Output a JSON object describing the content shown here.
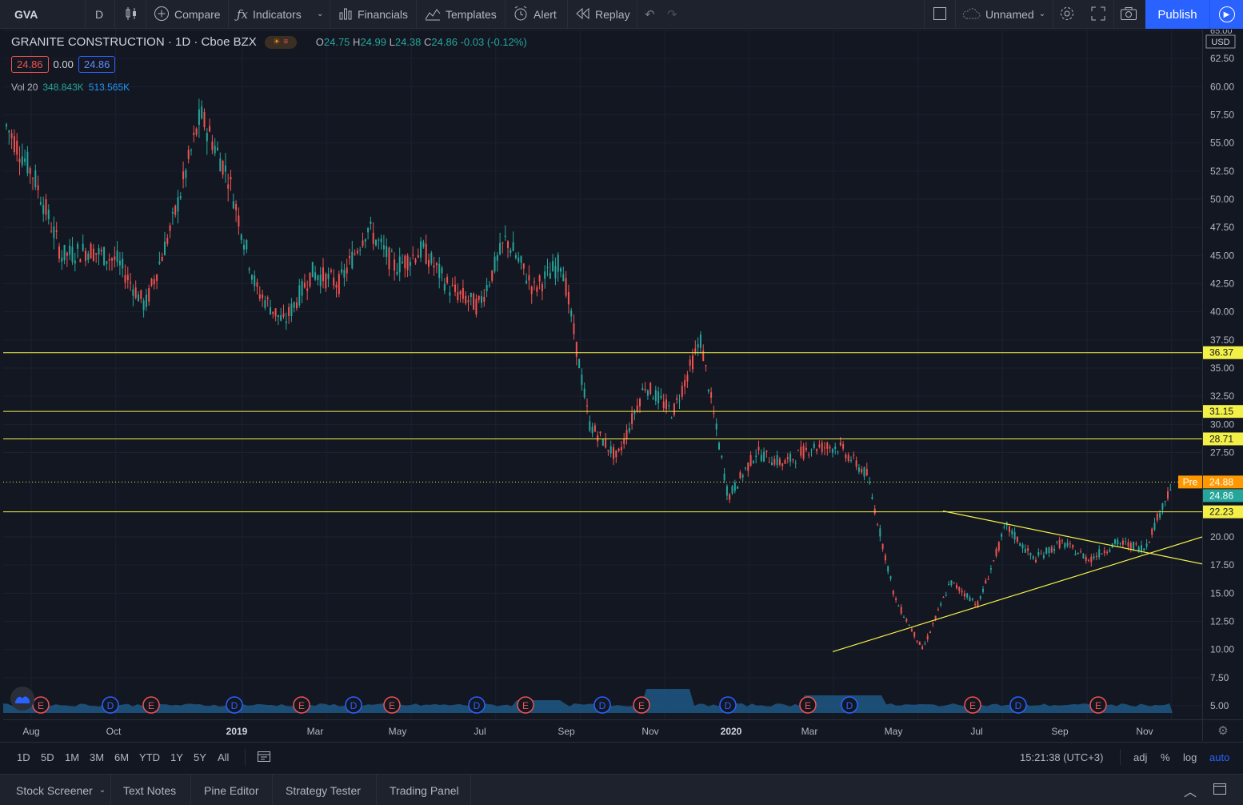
{
  "toolbar": {
    "symbol": "GVA",
    "interval": "D",
    "compare": "Compare",
    "indicators": "Indicators",
    "financials": "Financials",
    "templates": "Templates",
    "alert": "Alert",
    "replay": "Replay",
    "layout_name": "Unnamed",
    "publish": "Publish"
  },
  "legend": {
    "title": "GRANITE CONSTRUCTION",
    "interval": "1D",
    "exchange": "Cboe BZX",
    "open_label": "O",
    "open": "24.75",
    "high_label": "H",
    "high": "24.99",
    "low_label": "L",
    "low": "24.38",
    "close_label": "C",
    "close": "24.86",
    "change": "-0.03 (-0.12%)",
    "bid": "24.86",
    "spread": "0.00",
    "ask": "24.86",
    "vol_label": "Vol 20",
    "vol_value": "348.843K",
    "vol_ma": "513.565K"
  },
  "colors": {
    "background": "#131722",
    "up": "#26a69a",
    "down": "#ef5350",
    "hline": "#f3f047",
    "volume": "#1f5b8a",
    "accent": "#2962ff",
    "pre_badge": "#ff9800"
  },
  "chart_data": {
    "type": "candlestick",
    "title": "GRANITE CONSTRUCTION",
    "y_axis": {
      "currency": "USD",
      "range": [
        3.75,
        65.0
      ],
      "ticks": [
        "65.00",
        "62.50",
        "60.00",
        "57.50",
        "55.00",
        "52.50",
        "50.00",
        "47.50",
        "45.00",
        "42.50",
        "40.00",
        "37.50",
        "35.00",
        "32.50",
        "30.00",
        "27.50",
        "20.00",
        "17.50",
        "15.00",
        "12.50",
        "10.00",
        "7.50",
        "5.00"
      ]
    },
    "x_axis": {
      "labels": [
        "Aug",
        "Oct",
        "2019",
        "Mar",
        "May",
        "Jul",
        "Sep",
        "Nov",
        "2020",
        "Mar",
        "May",
        "Jul",
        "Sep",
        "Nov"
      ]
    },
    "price_path": [
      {
        "date": "Aug 2018",
        "price": 56.5
      },
      {
        "date": "Aug 2018",
        "price": 52
      },
      {
        "date": "Aug 2018",
        "price": 45
      },
      {
        "date": "Sep 2018",
        "price": 45.5
      },
      {
        "date": "Oct 2018",
        "price": 44.5
      },
      {
        "date": "Oct 2018",
        "price": 40.5
      },
      {
        "date": "Oct 2018",
        "price": 48
      },
      {
        "date": "Oct 2018",
        "price": 57.5
      },
      {
        "date": "Nov 2018",
        "price": 52
      },
      {
        "date": "Dec 2018",
        "price": 42
      },
      {
        "date": "Dec 2018",
        "price": 39
      },
      {
        "date": "Jan 2019",
        "price": 43.5
      },
      {
        "date": "Feb 2019",
        "price": 42.5
      },
      {
        "date": "Mar 2019",
        "price": 47.5
      },
      {
        "date": "Apr 2019",
        "price": 44
      },
      {
        "date": "May 2019",
        "price": 45.5
      },
      {
        "date": "May 2019",
        "price": 42
      },
      {
        "date": "Jun 2019",
        "price": 40.5
      },
      {
        "date": "Jul 2019",
        "price": 46.5
      },
      {
        "date": "Jul 2019",
        "price": 42
      },
      {
        "date": "Aug 2019",
        "price": 44.5
      },
      {
        "date": "Aug 2019",
        "price": 30
      },
      {
        "date": "Sep 2019",
        "price": 27
      },
      {
        "date": "Sep 2019",
        "price": 33.5
      },
      {
        "date": "Oct 2019",
        "price": 31
      },
      {
        "date": "Oct 2019",
        "price": 37.5
      },
      {
        "date": "Oct 2019",
        "price": 23.5
      },
      {
        "date": "Nov 2019",
        "price": 27.5
      },
      {
        "date": "Dec 2019",
        "price": 26.5
      },
      {
        "date": "Dec 2019",
        "price": 28
      },
      {
        "date": "Feb 2020",
        "price": 28
      },
      {
        "date": "Feb 2020",
        "price": 25.5
      },
      {
        "date": "Mar 2020",
        "price": 14.5
      },
      {
        "date": "Mar 2020",
        "price": 10
      },
      {
        "date": "Apr 2020",
        "price": 16
      },
      {
        "date": "May 2020",
        "price": 14
      },
      {
        "date": "Jun 2020",
        "price": 21
      },
      {
        "date": "Jul 2020",
        "price": 18
      },
      {
        "date": "Aug 2020",
        "price": 19.5
      },
      {
        "date": "Sep 2020",
        "price": 18
      },
      {
        "date": "Oct 2020",
        "price": 19.5
      },
      {
        "date": "Nov 2020",
        "price": 19
      },
      {
        "date": "Nov 2020",
        "price": 24.9
      }
    ],
    "horizontal_lines": [
      {
        "price": 36.37,
        "label": "36.37"
      },
      {
        "price": 31.15,
        "label": "31.15"
      },
      {
        "price": 28.71,
        "label": "28.71"
      },
      {
        "price": 22.23,
        "label": "22.23"
      }
    ],
    "trend_lines": [
      {
        "from": {
          "date": "Mar 2020",
          "price": 9.8
        },
        "to": {
          "date": "Dec 2020",
          "price": 20.0
        }
      },
      {
        "from": {
          "date": "Jun 2020",
          "price": 22.3
        },
        "to": {
          "date": "Dec 2020",
          "price": 17.6
        }
      }
    ],
    "premarket": {
      "label": "Pre",
      "price": "24.88"
    },
    "last_price": "24.86",
    "events": [
      "E",
      "D",
      "E",
      "D",
      "E",
      "D",
      "E",
      "D",
      "E",
      "D",
      "E",
      "D",
      "E",
      "D",
      "E",
      "D",
      "E",
      "D"
    ]
  },
  "range_bar": {
    "ranges": [
      "1D",
      "5D",
      "1M",
      "3M",
      "6M",
      "YTD",
      "1Y",
      "5Y",
      "All"
    ],
    "time": "15:21:38 (UTC+3)",
    "adj": "adj",
    "percent": "%",
    "log": "log",
    "auto": "auto"
  },
  "bottom_tabs": [
    "Stock Screener",
    "Text Notes",
    "Pine Editor",
    "Strategy Tester",
    "Trading Panel"
  ]
}
